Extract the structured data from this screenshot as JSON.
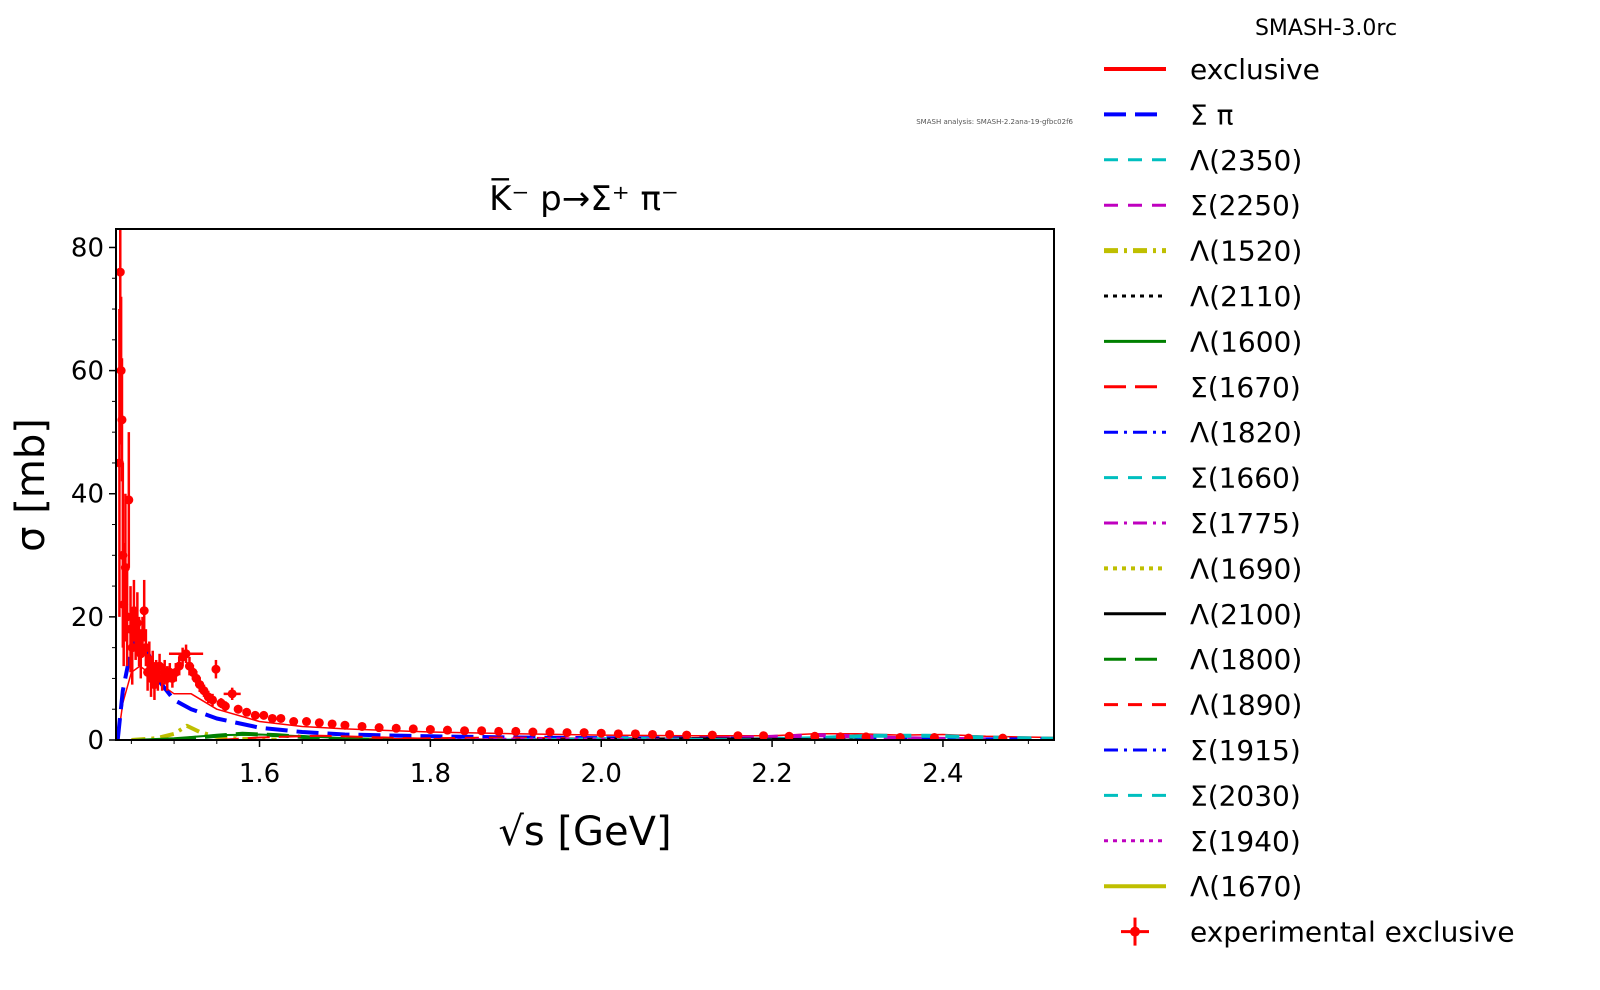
{
  "chart_data": {
    "type": "line",
    "title": "K̅⁻ p→Σ⁺ π⁻",
    "xlabel": "√s [GeV]",
    "ylabel": "σ [mb]",
    "xlim": [
      1.432,
      2.53
    ],
    "ylim": [
      0,
      83
    ],
    "xticks": [
      1.6,
      1.8,
      2.0,
      2.2,
      2.4
    ],
    "xtick_labels": [
      "1.6",
      "1.8",
      "2.0",
      "2.2",
      "2.4"
    ],
    "yticks": [
      0,
      20,
      40,
      60,
      80
    ],
    "ytick_labels": [
      "0",
      "20",
      "40",
      "60",
      "80"
    ],
    "annotation": "SMASH analysis: SMASH-2.2ana-19-gfbc02f6",
    "legend": {
      "title": "SMASH-3.0rc",
      "placement": "outside right",
      "entries": [
        {
          "label": "exclusive",
          "color": "#ff0000",
          "dash": "solid",
          "width": 4
        },
        {
          "label": "Σ π",
          "color": "#0000ff",
          "dash": "long-dash",
          "width": 4
        },
        {
          "label": "Λ(2350)",
          "color": "#00bfbf",
          "dash": "dash",
          "width": 3
        },
        {
          "label": "Σ(2250)",
          "color": "#bf00bf",
          "dash": "dash",
          "width": 3
        },
        {
          "label": "Λ(1520)",
          "color": "#bfbf00",
          "dash": "dash-dot",
          "width": 5
        },
        {
          "label": "Λ(2110)",
          "color": "#000000",
          "dash": "dot",
          "width": 3
        },
        {
          "label": "Λ(1600)",
          "color": "#008000",
          "dash": "solid",
          "width": 3
        },
        {
          "label": "Σ(1670)",
          "color": "#ff0000",
          "dash": "long-dash",
          "width": 3
        },
        {
          "label": "Λ(1820)",
          "color": "#0000ff",
          "dash": "dash-dot",
          "width": 3
        },
        {
          "label": "Σ(1660)",
          "color": "#00bfbf",
          "dash": "dash",
          "width": 3
        },
        {
          "label": "Σ(1775)",
          "color": "#bf00bf",
          "dash": "dash-dot",
          "width": 3
        },
        {
          "label": "Λ(1690)",
          "color": "#bfbf00",
          "dash": "dot",
          "width": 4
        },
        {
          "label": "Λ(2100)",
          "color": "#000000",
          "dash": "solid",
          "width": 3
        },
        {
          "label": "Λ(1800)",
          "color": "#008000",
          "dash": "long-dash",
          "width": 3
        },
        {
          "label": "Λ(1890)",
          "color": "#ff0000",
          "dash": "dash",
          "width": 3
        },
        {
          "label": "Σ(1915)",
          "color": "#0000ff",
          "dash": "dash-dot",
          "width": 3
        },
        {
          "label": "Σ(2030)",
          "color": "#00bfbf",
          "dash": "dash",
          "width": 3
        },
        {
          "label": "Σ(1940)",
          "color": "#bf00bf",
          "dash": "dot",
          "width": 3
        },
        {
          "label": "Λ(1670)",
          "color": "#bfbf00",
          "dash": "solid",
          "width": 4
        },
        {
          "label": "experimental exclusive",
          "color": "#ff0000",
          "marker": "errorbar"
        }
      ]
    },
    "series": [
      {
        "name": "exclusive",
        "color": "#ff0000",
        "dash": "solid",
        "width": 1.5,
        "x": [
          1.434,
          1.44,
          1.45,
          1.46,
          1.47,
          1.48,
          1.49,
          1.5,
          1.52,
          1.55,
          1.6,
          1.65,
          1.7,
          1.8,
          1.9,
          2.0,
          2.1,
          2.2,
          2.25,
          2.3,
          2.35,
          2.4,
          2.45,
          2.53
        ],
        "y": [
          0,
          6,
          11,
          12,
          11,
          10,
          8.5,
          7.5,
          7.5,
          5,
          3,
          2.2,
          1.8,
          1.3,
          1.0,
          0.8,
          0.7,
          0.7,
          1.0,
          1.0,
          0.8,
          0.9,
          0.6,
          0.4
        ]
      },
      {
        "name": "Σ π",
        "color": "#0000ff",
        "dash": "long-dash",
        "width": 4,
        "x": [
          1.434,
          1.44,
          1.45,
          1.46,
          1.47,
          1.48,
          1.5,
          1.52,
          1.55,
          1.6,
          1.65,
          1.7,
          1.8,
          1.9,
          2.0,
          2.2,
          2.4,
          2.53
        ],
        "y": [
          0,
          8,
          15,
          17,
          14,
          10,
          6.5,
          5,
          3.5,
          2.0,
          1.3,
          0.9,
          0.6,
          0.4,
          0.3,
          0.2,
          0.1,
          0.1
        ]
      },
      {
        "name": "Λ(1520)",
        "color": "#bfbf00",
        "dash": "dash-dot",
        "width": 4,
        "x": [
          1.45,
          1.48,
          1.5,
          1.515,
          1.53,
          1.55,
          1.58,
          1.62
        ],
        "y": [
          0,
          0.3,
          1.0,
          2.3,
          1.3,
          0.5,
          0.2,
          0.05
        ]
      },
      {
        "name": "Λ(1600)",
        "color": "#008000",
        "dash": "solid",
        "width": 2,
        "x": [
          1.45,
          1.5,
          1.55,
          1.6,
          1.65,
          1.7,
          1.8
        ],
        "y": [
          0,
          0.3,
          0.8,
          0.9,
          0.6,
          0.3,
          0.1
        ]
      },
      {
        "name": "Λ(1800)",
        "color": "#008000",
        "dash": "long-dash",
        "width": 4,
        "x": [
          1.5,
          1.55,
          1.58,
          1.62,
          1.66,
          1.7
        ],
        "y": [
          0,
          0.7,
          1.0,
          0.8,
          0.4,
          0.1
        ]
      },
      {
        "name": "Σ(1670)",
        "color": "#ff0000",
        "dash": "long-dash",
        "width": 2,
        "x": [
          1.55,
          1.6,
          1.67,
          1.72,
          1.8,
          1.9
        ],
        "y": [
          0,
          0.4,
          0.7,
          0.5,
          0.2,
          0.05
        ]
      },
      {
        "name": "Λ(1890)",
        "color": "#ff0000",
        "dash": "dash",
        "width": 2,
        "x": [
          1.7,
          1.8,
          1.89,
          1.95,
          2.05
        ],
        "y": [
          0,
          0.3,
          0.4,
          0.3,
          0.1
        ]
      },
      {
        "name": "Σ(2250)",
        "color": "#bf00bf",
        "dash": "dash",
        "width": 4,
        "x": [
          2.05,
          2.15,
          2.22,
          2.25,
          2.3,
          2.35,
          2.45
        ],
        "y": [
          0,
          0.3,
          0.6,
          0.8,
          0.6,
          0.3,
          0.1
        ]
      },
      {
        "name": "Λ(2350)",
        "color": "#00bfbf",
        "dash": "dash",
        "width": 4,
        "x": [
          2.15,
          2.25,
          2.32,
          2.38,
          2.45,
          2.53
        ],
        "y": [
          0,
          0.3,
          0.7,
          0.7,
          0.4,
          0.2
        ]
      },
      {
        "name": "Λ(2110)",
        "color": "#000000",
        "dash": "dot",
        "width": 2,
        "x": [
          1.9,
          2.0,
          2.1,
          2.2,
          2.3
        ],
        "y": [
          0,
          0.15,
          0.25,
          0.15,
          0.05
        ]
      },
      {
        "name": "Λ(2100)",
        "color": "#000000",
        "dash": "solid",
        "width": 2,
        "x": [
          1.9,
          2.0,
          2.1,
          2.2,
          2.3
        ],
        "y": [
          0,
          0.2,
          0.3,
          0.2,
          0.05
        ]
      },
      {
        "name": "Σ(2030)",
        "color": "#00bfbf",
        "dash": "dash",
        "width": 2,
        "x": [
          1.85,
          1.95,
          2.03,
          2.1,
          2.2
        ],
        "y": [
          0,
          0.2,
          0.35,
          0.2,
          0.05
        ]
      },
      {
        "name": "Σ(1940)",
        "color": "#bf00bf",
        "dash": "dot",
        "width": 2,
        "x": [
          1.8,
          1.88,
          1.94,
          2.0,
          2.1
        ],
        "y": [
          0,
          0.2,
          0.3,
          0.2,
          0.05
        ]
      }
    ],
    "experimental": {
      "name": "experimental exclusive",
      "color": "#ff0000",
      "points": [
        [
          1.436,
          45,
          25
        ],
        [
          1.437,
          76,
          8
        ],
        [
          1.438,
          60,
          12
        ],
        [
          1.439,
          52,
          10
        ],
        [
          1.44,
          30,
          15
        ],
        [
          1.441,
          22,
          10
        ],
        [
          1.443,
          28,
          12
        ],
        [
          1.445,
          20,
          8
        ],
        [
          1.447,
          39,
          11
        ],
        [
          1.449,
          18,
          7
        ],
        [
          1.451,
          15,
          6
        ],
        [
          1.453,
          21,
          5
        ],
        [
          1.455,
          17,
          4
        ],
        [
          1.457,
          19,
          5
        ],
        [
          1.459,
          16,
          4
        ],
        [
          1.461,
          14,
          4
        ],
        [
          1.463,
          17,
          3
        ],
        [
          1.465,
          21,
          5
        ],
        [
          1.467,
          15,
          3
        ],
        [
          1.469,
          11,
          3
        ],
        [
          1.471,
          13,
          3
        ],
        [
          1.473,
          10,
          3
        ],
        [
          1.475,
          12,
          2.5
        ],
        [
          1.477,
          9,
          2.5
        ],
        [
          1.479,
          11,
          2
        ],
        [
          1.481,
          10,
          2
        ],
        [
          1.483,
          12,
          2
        ],
        [
          1.486,
          10,
          2
        ],
        [
          1.489,
          11,
          2
        ],
        [
          1.492,
          10,
          2
        ],
        [
          1.495,
          11,
          1.5
        ],
        [
          1.498,
          10,
          1.5
        ],
        [
          1.502,
          11,
          1.5
        ],
        [
          1.506,
          12,
          1.5
        ],
        [
          1.51,
          13.5,
          1.5
        ],
        [
          1.514,
          14,
          1.5
        ],
        [
          1.518,
          12,
          1.5
        ],
        [
          1.522,
          11,
          1.2
        ],
        [
          1.526,
          10,
          1.2
        ],
        [
          1.53,
          9,
          1.2
        ],
        [
          1.535,
          8,
          1.0
        ],
        [
          1.54,
          7,
          1.0
        ],
        [
          1.545,
          6.5,
          1.0
        ],
        [
          1.549,
          11.5,
          1.5
        ],
        [
          1.555,
          6,
          0.8
        ],
        [
          1.56,
          5.5,
          0.8
        ],
        [
          1.568,
          7.5,
          1.0
        ],
        [
          1.575,
          5,
          0.7
        ],
        [
          1.585,
          4.5,
          0.6
        ],
        [
          1.595,
          4,
          0.5
        ],
        [
          1.605,
          4,
          0.5
        ],
        [
          1.615,
          3.5,
          0.5
        ],
        [
          1.625,
          3.5,
          0.4
        ],
        [
          1.64,
          3,
          0.4
        ],
        [
          1.655,
          3,
          0.4
        ],
        [
          1.67,
          2.8,
          0.3
        ],
        [
          1.685,
          2.6,
          0.3
        ],
        [
          1.7,
          2.4,
          0.3
        ],
        [
          1.72,
          2.2,
          0.3
        ],
        [
          1.74,
          2.0,
          0.3
        ],
        [
          1.76,
          1.9,
          0.3
        ],
        [
          1.78,
          1.8,
          0.3
        ],
        [
          1.8,
          1.7,
          0.3
        ],
        [
          1.82,
          1.6,
          0.3
        ],
        [
          1.84,
          1.5,
          0.3
        ],
        [
          1.86,
          1.5,
          0.3
        ],
        [
          1.88,
          1.4,
          0.3
        ],
        [
          1.9,
          1.4,
          0.3
        ],
        [
          1.92,
          1.3,
          0.3
        ],
        [
          1.94,
          1.3,
          0.3
        ],
        [
          1.96,
          1.2,
          0.3
        ],
        [
          1.98,
          1.2,
          0.3
        ],
        [
          2.0,
          1.1,
          0.3
        ],
        [
          2.02,
          1.0,
          0.3
        ],
        [
          2.04,
          1.0,
          0.3
        ],
        [
          2.06,
          0.9,
          0.3
        ],
        [
          2.08,
          0.9,
          0.3
        ],
        [
          2.1,
          0.8,
          0.2
        ],
        [
          2.13,
          0.8,
          0.2
        ],
        [
          2.16,
          0.7,
          0.2
        ],
        [
          2.19,
          0.7,
          0.2
        ],
        [
          2.22,
          0.6,
          0.2
        ],
        [
          2.25,
          0.6,
          0.2
        ],
        [
          2.28,
          0.5,
          0.2
        ],
        [
          2.31,
          0.5,
          0.2
        ],
        [
          2.35,
          0.4,
          0.2
        ],
        [
          2.39,
          0.4,
          0.2
        ],
        [
          2.43,
          0.3,
          0.2
        ],
        [
          2.47,
          0.3,
          0.2
        ]
      ],
      "xerr_points": [
        [
          1.514,
          14,
          0.02
        ],
        [
          1.568,
          7.5,
          0.01
        ]
      ]
    }
  }
}
